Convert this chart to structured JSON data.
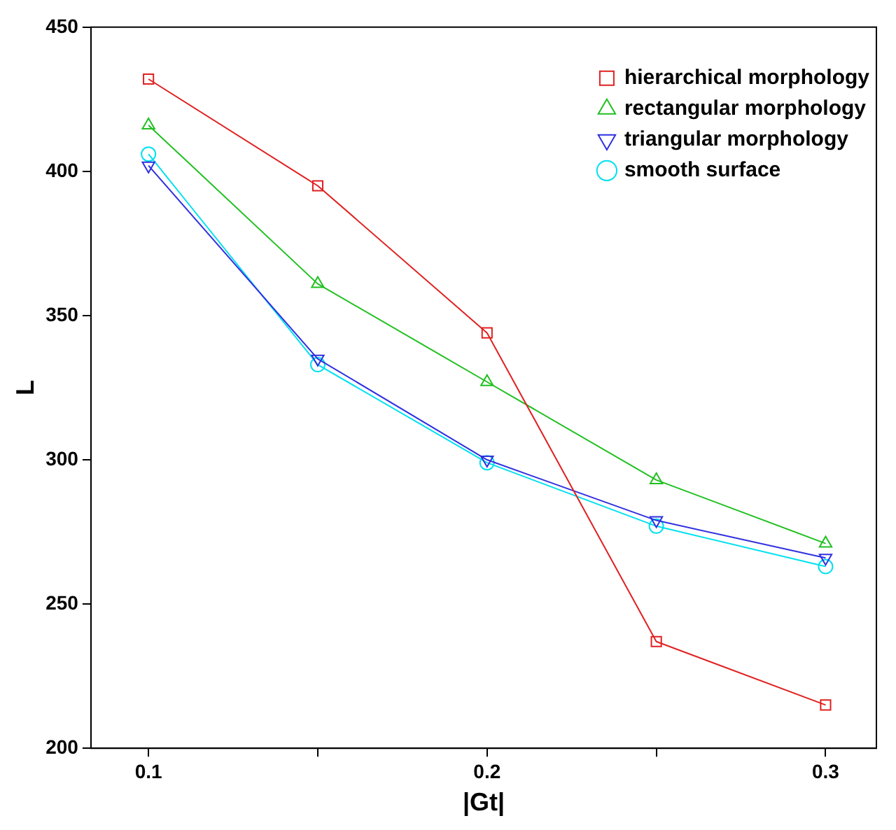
{
  "chart_data": {
    "type": "line",
    "xlabel": "|Gt|",
    "ylabel": "L",
    "x": [
      0.1,
      0.15,
      0.2,
      0.25,
      0.3
    ],
    "xlim": [
      0.083,
      0.315
    ],
    "xticks": [
      0.1,
      {
        "value": 0.15,
        "label": null
      },
      0.2,
      {
        "value": 0.25,
        "label": null
      },
      0.3
    ],
    "ylim": [
      200,
      450
    ],
    "yticks": [
      200,
      250,
      300,
      350,
      400,
      450
    ],
    "grid": false,
    "legend": "top right",
    "series": [
      {
        "name": "hierarchical morphology",
        "color": "#e02020",
        "marker": "square",
        "values": [
          432,
          395,
          344,
          237,
          215
        ]
      },
      {
        "name": "rectangular morphology",
        "color": "#20c020",
        "marker": "triangle",
        "values": [
          416,
          361,
          327,
          293,
          271
        ]
      },
      {
        "name": "triangular morphology",
        "color": "#3030e0",
        "marker": "triangle-down",
        "values": [
          402,
          335,
          300,
          279,
          266
        ]
      },
      {
        "name": "smooth surface",
        "color": "#00e0f0",
        "marker": "circle",
        "values": [
          406,
          333,
          299,
          277,
          263
        ]
      }
    ]
  }
}
